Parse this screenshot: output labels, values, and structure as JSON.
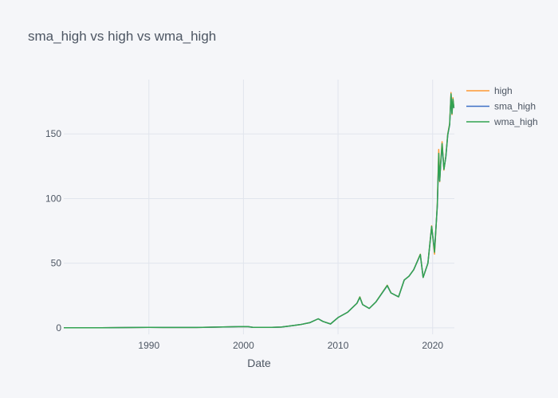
{
  "chart_data": {
    "type": "line",
    "title": "sma_high vs high vs wma_high",
    "xlabel": "Date",
    "ylabel": "",
    "xlim": [
      1981.0,
      2022.3
    ],
    "ylim": [
      -5,
      192
    ],
    "xticks": [
      1990,
      2000,
      2010,
      2020
    ],
    "yticks": [
      0,
      50,
      100,
      150
    ],
    "grid": true,
    "legend_position": "top-right",
    "series": [
      {
        "name": "high",
        "color": "#ff9933",
        "x": [
          1981.0,
          1985,
          1990,
          1991.5,
          1995,
          2000.0,
          2000.5,
          2001,
          2003,
          2004,
          2005,
          2006,
          2007,
          2007.9,
          2008.4,
          2009.2,
          2010,
          2011,
          2012,
          2012.3,
          2012.6,
          2013.3,
          2014,
          2015.2,
          2015.6,
          2016.4,
          2017,
          2017.5,
          2018,
          2018.7,
          2019.0,
          2019.5,
          2019.9,
          2020.2,
          2020.5,
          2020.65,
          2020.75,
          2020.85,
          2021.0,
          2021.2,
          2021.4,
          2021.6,
          2021.8,
          2021.95,
          2022.05,
          2022.15,
          2022.25
        ],
        "values": [
          0.1,
          0.1,
          0.4,
          0.3,
          0.3,
          1.0,
          0.9,
          0.4,
          0.4,
          0.6,
          1.5,
          2.5,
          4.0,
          7.0,
          5.0,
          3.0,
          8.0,
          12.0,
          19.0,
          24.0,
          18.0,
          15.0,
          20.0,
          33.0,
          27.0,
          24.0,
          37.0,
          40.0,
          45.0,
          57.0,
          39.0,
          50.0,
          79.0,
          57.0,
          96.0,
          138.0,
          113.0,
          128.0,
          144.0,
          122.0,
          133.0,
          150.0,
          158.0,
          182.0,
          165.0,
          178.0,
          170.0
        ]
      },
      {
        "name": "sma_high",
        "color": "#3d6fc6",
        "x": [
          1981.0,
          1985,
          1990,
          1991.5,
          1995,
          2000.0,
          2000.5,
          2001,
          2003,
          2004,
          2005,
          2006,
          2007,
          2007.9,
          2008.4,
          2009.2,
          2010,
          2011,
          2012,
          2012.3,
          2012.6,
          2013.3,
          2014,
          2015.2,
          2015.6,
          2016.4,
          2017,
          2017.5,
          2018,
          2018.7,
          2019.0,
          2019.5,
          2019.9,
          2020.2,
          2020.5,
          2020.65,
          2020.75,
          2020.85,
          2021.0,
          2021.2,
          2021.4,
          2021.6,
          2021.8,
          2021.95,
          2022.05,
          2022.15,
          2022.25
        ],
        "values": [
          0.1,
          0.1,
          0.4,
          0.3,
          0.3,
          1.0,
          0.9,
          0.4,
          0.4,
          0.6,
          1.5,
          2.5,
          4.0,
          7.0,
          5.0,
          3.0,
          8.0,
          12.0,
          19.0,
          23.5,
          18.0,
          15.0,
          20.0,
          32.5,
          27.0,
          24.0,
          37.0,
          40.0,
          45.0,
          56.5,
          39.0,
          50.0,
          78.0,
          60.0,
          94.0,
          132.0,
          114.0,
          126.0,
          141.0,
          123.0,
          132.0,
          149.0,
          157.0,
          180.0,
          166.0,
          176.0,
          170.0
        ]
      },
      {
        "name": "wma_high",
        "color": "#32a351",
        "x": [
          1981.0,
          1985,
          1990,
          1991.5,
          1995,
          2000.0,
          2000.5,
          2001,
          2003,
          2004,
          2005,
          2006,
          2007,
          2007.9,
          2008.4,
          2009.2,
          2010,
          2011,
          2012,
          2012.3,
          2012.6,
          2013.3,
          2014,
          2015.2,
          2015.6,
          2016.4,
          2017,
          2017.5,
          2018,
          2018.7,
          2019.0,
          2019.5,
          2019.9,
          2020.2,
          2020.5,
          2020.65,
          2020.75,
          2020.85,
          2021.0,
          2021.2,
          2021.4,
          2021.6,
          2021.8,
          2021.95,
          2022.05,
          2022.15,
          2022.25
        ],
        "values": [
          0.1,
          0.1,
          0.4,
          0.3,
          0.3,
          1.0,
          0.9,
          0.4,
          0.4,
          0.6,
          1.5,
          2.5,
          4.0,
          7.0,
          5.0,
          3.0,
          8.0,
          12.0,
          19.0,
          23.8,
          18.0,
          15.0,
          20.0,
          32.8,
          27.0,
          24.0,
          37.0,
          40.0,
          45.0,
          56.8,
          39.0,
          50.0,
          78.5,
          58.5,
          95.0,
          135.0,
          113.5,
          127.0,
          142.5,
          122.5,
          132.5,
          149.5,
          157.5,
          181.0,
          165.5,
          177.0,
          170.0
        ]
      }
    ]
  }
}
